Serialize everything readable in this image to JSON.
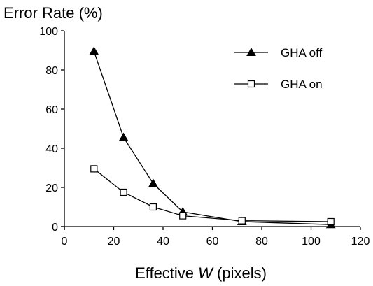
{
  "chart_data": {
    "type": "line",
    "title": "",
    "ylabel": "Error Rate (%)",
    "xlabel_parts": {
      "prefix": "Effective ",
      "variable": "W",
      "suffix": " (pixels)"
    },
    "xlim": [
      0,
      120
    ],
    "ylim": [
      0,
      100
    ],
    "xticks": [
      0,
      20,
      40,
      60,
      80,
      100,
      120
    ],
    "yticks": [
      0,
      20,
      40,
      60,
      80,
      100
    ],
    "grid": false,
    "legend_position": "top-right",
    "series": [
      {
        "name": "GHA off",
        "marker": "filled-triangle",
        "color": "#000000",
        "x": [
          12,
          24,
          36,
          48,
          72,
          108
        ],
        "y": [
          89.5,
          45.5,
          22,
          7.5,
          2.5,
          1
        ]
      },
      {
        "name": "GHA on",
        "marker": "open-square",
        "color": "#000000",
        "x": [
          12,
          24,
          36,
          48,
          72,
          108
        ],
        "y": [
          29.5,
          17.5,
          10,
          5.5,
          3,
          2.5
        ]
      }
    ]
  }
}
